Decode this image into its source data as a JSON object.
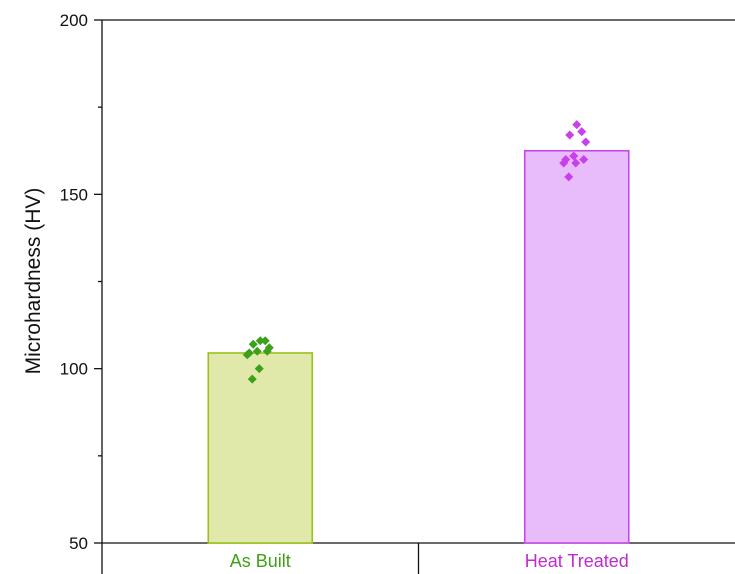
{
  "chart_data": {
    "type": "bar",
    "title": "",
    "xlabel": "",
    "ylabel": "Microhardness (HV)",
    "ylim": [
      50,
      200
    ],
    "yticks": [
      50,
      100,
      150,
      200
    ],
    "y_minor_ticks": [
      75,
      125,
      175
    ],
    "grid": false,
    "categories": [
      "As Built",
      "Heat Treated"
    ],
    "values": [
      104.5,
      162.5
    ],
    "bar_fill_colors": [
      "#e0e8aa",
      "#e8bcfb"
    ],
    "bar_edge_colors": [
      "#9cc21a",
      "#c44ae8"
    ],
    "label_colors": [
      "#3fa017",
      "#c02ad0"
    ],
    "point_colors": [
      "#3ca01a",
      "#c840ec"
    ],
    "points": [
      [
        108,
        108,
        107,
        106,
        105,
        105,
        104.5,
        104,
        100,
        97
      ],
      [
        170,
        168,
        167,
        165,
        161,
        160,
        160,
        159,
        159,
        155
      ]
    ]
  }
}
